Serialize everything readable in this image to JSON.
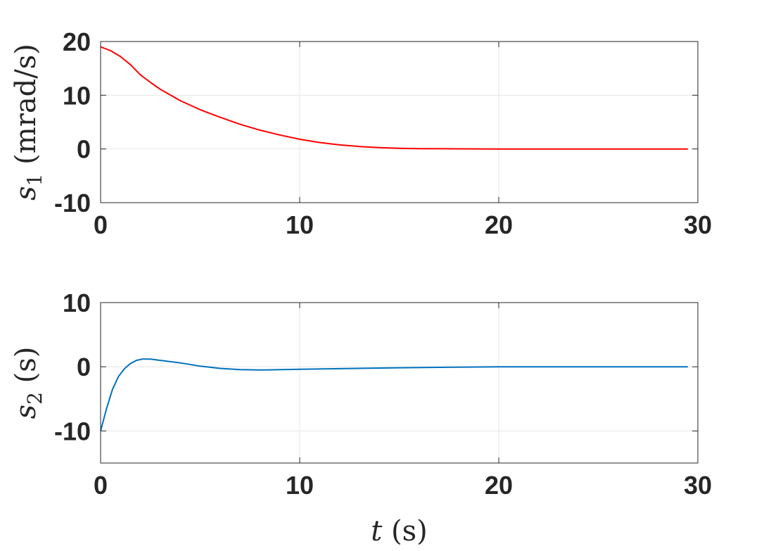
{
  "chart_data": [
    {
      "type": "line",
      "ylabel": {
        "symbol": "s",
        "subscript": "1",
        "unit": " (mrad/s)"
      },
      "xlabel": null,
      "xlim": [
        0,
        30
      ],
      "ylim": [
        -10,
        20
      ],
      "xticks": [
        "0",
        "10",
        "20",
        "30"
      ],
      "yticks": [
        "-10",
        "0",
        "10",
        "20"
      ],
      "grid": true,
      "series": [
        {
          "color": "#ff0000",
          "x": [
            0,
            0.5,
            1,
            1.5,
            2,
            2.5,
            3,
            4,
            5,
            6,
            7,
            8,
            9,
            10,
            11,
            12,
            13,
            14,
            15,
            16,
            18,
            20,
            22,
            25,
            29.5
          ],
          "y": [
            19,
            18.3,
            17.2,
            15.7,
            13.8,
            12.4,
            11.1,
            9.0,
            7.3,
            5.9,
            4.6,
            3.5,
            2.6,
            1.8,
            1.2,
            0.75,
            0.45,
            0.25,
            0.12,
            0.06,
            0.02,
            0.0,
            0.0,
            0.0,
            0.0
          ]
        }
      ]
    },
    {
      "type": "line",
      "ylabel": {
        "symbol": "s",
        "subscript": "2",
        "unit": " (s)"
      },
      "xlabel": {
        "symbol": "t",
        "unit": " (s)"
      },
      "xlim": [
        0,
        30
      ],
      "ylim": [
        -15,
        10
      ],
      "xticks": [
        "0",
        "10",
        "20",
        "30"
      ],
      "yticks": [
        "-10",
        "0",
        "10"
      ],
      "grid": true,
      "series": [
        {
          "color": "#0072bd",
          "x": [
            0,
            0.3,
            0.6,
            0.9,
            1.2,
            1.5,
            1.8,
            2.1,
            2.5,
            3,
            4,
            5,
            6,
            7,
            8,
            10,
            12,
            15,
            20,
            25,
            29.5
          ],
          "y": [
            -10,
            -6.5,
            -3.5,
            -1.5,
            -0.3,
            0.5,
            1.0,
            1.2,
            1.2,
            1.0,
            0.6,
            0.1,
            -0.25,
            -0.45,
            -0.5,
            -0.4,
            -0.3,
            -0.15,
            0.0,
            0.0,
            0.0
          ]
        }
      ]
    }
  ]
}
